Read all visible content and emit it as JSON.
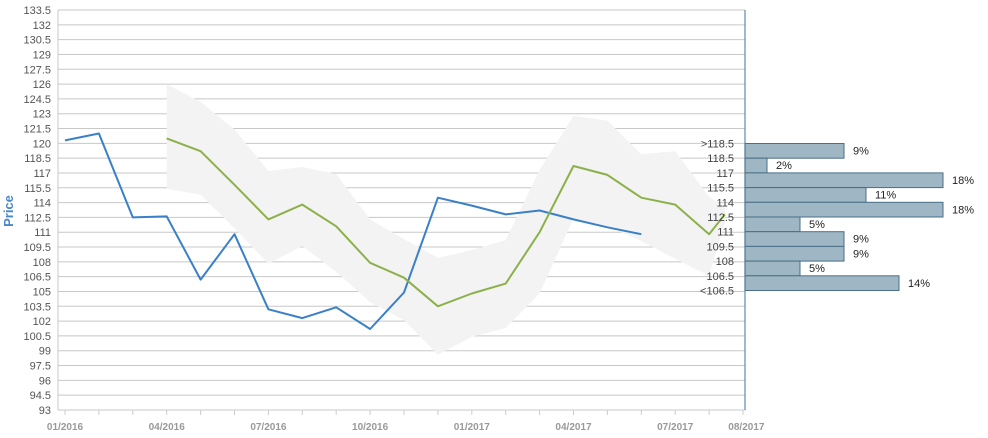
{
  "chart_data": {
    "type": "line",
    "ylabel": "Price",
    "y_ticks": [
      "133.5",
      "132",
      "130.5",
      "129",
      "127.5",
      "126",
      "124.5",
      "123",
      "121.5",
      "120",
      "118.5",
      "117",
      "115.5",
      "114",
      "112.5",
      "111",
      "109.5",
      "108",
      "106.5",
      "105",
      "103.5",
      "102",
      "100.5",
      "99",
      "97.5",
      "96",
      "94.5",
      "93"
    ],
    "ylim": [
      93,
      133.5
    ],
    "x_ticks": [
      "01/2016",
      "04/2016",
      "07/2016",
      "10/2016",
      "01/2017",
      "04/2017",
      "07/2017",
      "08/2017"
    ],
    "series": [
      {
        "color": "#3a80c8",
        "points": [
          [
            "2016-01-01",
            120.3
          ],
          [
            "2016-02-01",
            121.0
          ],
          [
            "2016-03-01",
            112.5
          ],
          [
            "2016-04-01",
            112.6
          ],
          [
            "2016-05-01",
            106.2
          ],
          [
            "2016-06-01",
            110.8
          ],
          [
            "2016-07-01",
            103.2
          ],
          [
            "2016-08-01",
            102.3
          ],
          [
            "2016-09-01",
            103.4
          ],
          [
            "2016-10-01",
            101.2
          ],
          [
            "2016-11-01",
            104.9
          ],
          [
            "2016-12-01",
            114.5
          ],
          [
            "2017-01-01",
            113.7
          ],
          [
            "2017-02-01",
            112.8
          ],
          [
            "2017-03-01",
            113.2
          ],
          [
            "2017-04-01",
            112.3
          ],
          [
            "2017-05-01",
            111.5
          ],
          [
            "2017-06-01",
            110.8
          ]
        ]
      },
      {
        "color": "#8cb04a",
        "points": [
          [
            "2016-04-01",
            120.5
          ],
          [
            "2016-05-01",
            119.2
          ],
          [
            "2016-06-01",
            115.8
          ],
          [
            "2016-07-01",
            112.3
          ],
          [
            "2016-08-01",
            113.8
          ],
          [
            "2016-09-01",
            111.6
          ],
          [
            "2016-10-01",
            107.9
          ],
          [
            "2016-11-01",
            106.4
          ],
          [
            "2016-12-01",
            103.5
          ],
          [
            "2017-01-01",
            104.8
          ],
          [
            "2017-02-01",
            105.8
          ],
          [
            "2017-03-01",
            111.0
          ],
          [
            "2017-04-01",
            117.7
          ],
          [
            "2017-05-01",
            116.8
          ],
          [
            "2017-06-01",
            114.5
          ],
          [
            "2017-07-01",
            113.8
          ],
          [
            "2017-08-01",
            110.8
          ],
          [
            "2017-08-15",
            112.8
          ]
        ]
      }
    ],
    "band": {
      "color": "#f3f3f3",
      "upper": [
        [
          "2016-04-01",
          126.0
        ],
        [
          "2016-05-01",
          124.2
        ],
        [
          "2016-06-01",
          121.4
        ],
        [
          "2016-07-01",
          117.2
        ],
        [
          "2016-08-01",
          117.6
        ],
        [
          "2016-09-01",
          116.9
        ],
        [
          "2016-10-01",
          112.3
        ],
        [
          "2016-11-01",
          110.3
        ],
        [
          "2016-12-01",
          108.4
        ],
        [
          "2017-01-01",
          109.2
        ],
        [
          "2017-02-01",
          110.2
        ],
        [
          "2017-03-01",
          117.3
        ],
        [
          "2017-04-01",
          122.8
        ],
        [
          "2017-05-01",
          122.3
        ],
        [
          "2017-06-01",
          118.9
        ],
        [
          "2017-07-01",
          119.2
        ],
        [
          "2017-08-01",
          114.6
        ],
        [
          "2017-08-15",
          113.5
        ]
      ],
      "lower": [
        [
          "2016-04-01",
          115.4
        ],
        [
          "2016-05-01",
          114.8
        ],
        [
          "2016-06-01",
          111.4
        ],
        [
          "2016-07-01",
          107.8
        ],
        [
          "2016-08-01",
          109.6
        ],
        [
          "2016-09-01",
          107.0
        ],
        [
          "2016-10-01",
          103.9
        ],
        [
          "2016-11-01",
          102.1
        ],
        [
          "2016-12-01",
          98.6
        ],
        [
          "2017-01-01",
          100.4
        ],
        [
          "2017-02-01",
          101.3
        ],
        [
          "2017-03-01",
          104.8
        ],
        [
          "2017-04-01",
          112.4
        ],
        [
          "2017-05-01",
          111.6
        ],
        [
          "2017-06-01",
          110.1
        ],
        [
          "2017-07-01",
          108.3
        ],
        [
          "2017-08-01",
          106.6
        ],
        [
          "2017-08-15",
          112.0
        ]
      ]
    },
    "histogram": {
      "color": "#9fb6c4",
      "bins": [
        {
          "label": ">118.5",
          "percent": 9,
          "value_label": "9%"
        },
        {
          "label": "118.5",
          "percent": 2,
          "value_label": "2%"
        },
        {
          "label": "117",
          "percent": 18,
          "value_label": "18%"
        },
        {
          "label": "115.5",
          "percent": 11,
          "value_label": "11%"
        },
        {
          "label": "114",
          "percent": 18,
          "value_label": "18%"
        },
        {
          "label": "112.5",
          "percent": 5,
          "value_label": "5%"
        },
        {
          "label": "111",
          "percent": 9,
          "value_label": "9%"
        },
        {
          "label": "109.5",
          "percent": 9,
          "value_label": "9%"
        },
        {
          "label": "108",
          "percent": 5,
          "value_label": "5%"
        },
        {
          "label": "106.5",
          "percent": 14,
          "value_label": "14%"
        },
        {
          "label": "<106.5",
          "percent": null,
          "value_label": ""
        }
      ]
    },
    "grid": true
  }
}
